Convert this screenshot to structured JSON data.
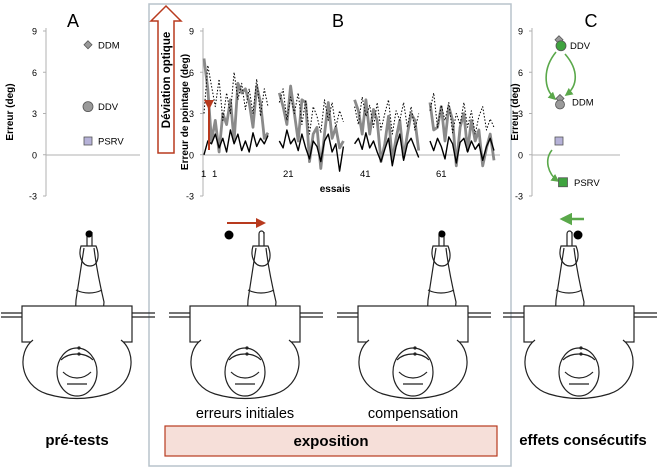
{
  "panels": {
    "a": {
      "letter": "A",
      "caption": "pré-tests"
    },
    "b": {
      "letter": "B",
      "caption": "exposition",
      "sub_left": "erreurs initiales",
      "sub_right": "compensation"
    },
    "c": {
      "letter": "C",
      "caption": "effets consécutifs"
    }
  },
  "optical_deviation_label": "Déviation optique",
  "colors": {
    "arrow_red": "#b83a1e",
    "arrow_green": "#5aa84a",
    "ddv_green": "#3fa33f",
    "panel_border": "#b8c3cc"
  },
  "chart_data": [
    {
      "type": "scatter",
      "ylabel": "Erreur (deg)",
      "ylim": [
        -3,
        9
      ],
      "yticks": [
        "9",
        "6",
        "3",
        "0",
        "-3"
      ],
      "points": [
        {
          "name": "DDM",
          "y": 8,
          "marker": "diamond"
        },
        {
          "name": "DDV",
          "y": 3.5,
          "marker": "circle"
        },
        {
          "name": "PSRV",
          "y": 1,
          "marker": "square"
        }
      ]
    },
    {
      "type": "line",
      "ylabel": "Erreur de pointage (deg)",
      "xlabel": "essais",
      "ylim": [
        -3,
        9
      ],
      "yticks": [
        "9",
        "6",
        "3",
        "0",
        "-3"
      ],
      "xticks": [
        "1",
        "1",
        "21",
        "41",
        "61"
      ],
      "series": [
        {
          "style": "gray-thick",
          "color": "#8a8a8a",
          "segments": [
            [
              [
                1,
                7
              ],
              [
                2,
                4.8
              ],
              [
                3,
                1
              ],
              [
                4,
                2.5
              ],
              [
                5,
                0.2
              ],
              [
                6,
                3
              ],
              [
                7,
                2.2
              ],
              [
                8,
                4
              ],
              [
                9,
                1
              ],
              [
                10,
                5.2
              ],
              [
                11,
                4.5
              ],
              [
                12,
                4.8
              ],
              [
                13,
                3.8
              ],
              [
                14,
                2
              ],
              [
                15,
                5
              ],
              [
                16,
                3.8
              ],
              [
                17,
                1.2
              ],
              [
                18,
                1.6
              ]
            ],
            [
              [
                21,
                4.5
              ],
              [
                22,
                3.5
              ],
              [
                23,
                2.2
              ],
              [
                24,
                5
              ],
              [
                25,
                3
              ],
              [
                26,
                1
              ],
              [
                27,
                4
              ],
              [
                28,
                3.8
              ],
              [
                29,
                -0.5
              ],
              [
                30,
                1.5
              ],
              [
                31,
                2
              ],
              [
                32,
                -1
              ],
              [
                33,
                1.5
              ],
              [
                34,
                3.8
              ],
              [
                35,
                1.2
              ],
              [
                36,
                2
              ],
              [
                37,
                0.5
              ],
              [
                38,
                1
              ]
            ],
            [
              [
                41,
                4
              ],
              [
                42,
                3.2
              ],
              [
                43,
                1.5
              ],
              [
                44,
                4
              ],
              [
                45,
                1.5
              ],
              [
                46,
                3.3
              ],
              [
                47,
                2.5
              ],
              [
                48,
                -0.5
              ],
              [
                49,
                0.8
              ],
              [
                50,
                2.8
              ],
              [
                51,
                -0.4
              ],
              [
                52,
                1.2
              ],
              [
                53,
                2.5
              ],
              [
                54,
                -0.2
              ],
              [
                55,
                1.5
              ],
              [
                56,
                3
              ],
              [
                57,
                2.5
              ],
              [
                58,
                0.3
              ]
            ],
            [
              [
                61,
                3.8
              ],
              [
                62,
                1.8
              ],
              [
                63,
                2
              ],
              [
                64,
                3.5
              ],
              [
                65,
                1
              ],
              [
                66,
                3.5
              ],
              [
                67,
                2.5
              ],
              [
                68,
                -0.8
              ],
              [
                69,
                2
              ],
              [
                70,
                3
              ],
              [
                71,
                0.3
              ],
              [
                72,
                2.5
              ],
              [
                73,
                1
              ],
              [
                74,
                1.8
              ],
              [
                75,
                -0.8
              ],
              [
                76,
                0.5
              ],
              [
                77,
                1.5
              ],
              [
                78,
                -0.4
              ]
            ]
          ]
        },
        {
          "style": "black",
          "color": "#000000",
          "segments": [
            [
              [
                1,
                0
              ],
              [
                2,
                1
              ],
              [
                3,
                0.8
              ],
              [
                4,
                1.5
              ],
              [
                5,
                0.5
              ],
              [
                6,
                1.2
              ],
              [
                7,
                0.2
              ],
              [
                8,
                1.8
              ],
              [
                9,
                0.8
              ],
              [
                10,
                1.5
              ],
              [
                11,
                0.3
              ],
              [
                12,
                1
              ],
              [
                13,
                0.2
              ],
              [
                14,
                1.6
              ],
              [
                15,
                0.6
              ],
              [
                16,
                1.2
              ],
              [
                17,
                0.8
              ],
              [
                18,
                1.4
              ]
            ],
            [
              [
                21,
                1
              ],
              [
                22,
                0.5
              ],
              [
                23,
                1.8
              ],
              [
                24,
                0.8
              ],
              [
                25,
                1.2
              ],
              [
                26,
                0.3
              ],
              [
                27,
                1.5
              ],
              [
                28,
                0.5
              ],
              [
                29,
                -0.3
              ],
              [
                30,
                1
              ],
              [
                31,
                0.6
              ],
              [
                32,
                -0.5
              ],
              [
                33,
                1
              ],
              [
                34,
                1.5
              ],
              [
                35,
                0.2
              ],
              [
                36,
                0.8
              ],
              [
                37,
                -1.2
              ],
              [
                38,
                0.6
              ]
            ],
            [
              [
                41,
                0.8
              ],
              [
                42,
                1.2
              ],
              [
                43,
                0.4
              ],
              [
                44,
                1.6
              ],
              [
                45,
                0.5
              ],
              [
                46,
                1
              ],
              [
                47,
                0.2
              ],
              [
                48,
                -0.5
              ],
              [
                49,
                0.4
              ],
              [
                50,
                1.2
              ],
              [
                51,
                -0.8
              ],
              [
                52,
                0.6
              ],
              [
                53,
                1.5
              ],
              [
                54,
                -0.4
              ],
              [
                55,
                0.8
              ],
              [
                56,
                1.2
              ],
              [
                57,
                0.5
              ],
              [
                58,
                -0.2
              ]
            ],
            [
              [
                61,
                1
              ],
              [
                62,
                0.3
              ],
              [
                63,
                1.2
              ],
              [
                64,
                0.6
              ],
              [
                65,
                -0.3
              ],
              [
                66,
                1.3
              ],
              [
                67,
                0.8
              ],
              [
                68,
                -0.6
              ],
              [
                69,
                0.9
              ],
              [
                70,
                1.2
              ],
              [
                71,
                0.2
              ],
              [
                72,
                1
              ],
              [
                73,
                0.4
              ],
              [
                74,
                0.8
              ],
              [
                75,
                -0.4
              ],
              [
                76,
                0.6
              ],
              [
                77,
                1.2
              ],
              [
                78,
                0.3
              ]
            ]
          ]
        },
        {
          "style": "dotted",
          "color": "#000000",
          "segments": [
            [
              [
                1,
                3
              ],
              [
                2,
                6.5
              ],
              [
                3,
                5
              ],
              [
                4,
                3.5
              ],
              [
                5,
                5.5
              ],
              [
                6,
                2.5
              ],
              [
                7,
                4.5
              ],
              [
                8,
                3
              ],
              [
                9,
                6
              ],
              [
                10,
                4
              ],
              [
                11,
                5.2
              ],
              [
                12,
                3.3
              ],
              [
                13,
                4.8
              ],
              [
                14,
                3
              ],
              [
                15,
                5.5
              ],
              [
                16,
                2.8
              ],
              [
                17,
                4.8
              ],
              [
                18,
                3.5
              ]
            ],
            [
              [
                21,
                3.8
              ],
              [
                22,
                4.8
              ],
              [
                23,
                2.5
              ],
              [
                24,
                4.2
              ],
              [
                25,
                3
              ],
              [
                26,
                4.5
              ],
              [
                27,
                2.2
              ],
              [
                28,
                4
              ],
              [
                29,
                1.5
              ],
              [
                30,
                3.5
              ],
              [
                31,
                2.8
              ],
              [
                32,
                1.6
              ],
              [
                33,
                4
              ],
              [
                34,
                2.5
              ],
              [
                35,
                3.8
              ],
              [
                36,
                2
              ],
              [
                37,
                3.2
              ],
              [
                38,
                2.4
              ]
            ],
            [
              [
                41,
                3.5
              ],
              [
                42,
                2.2
              ],
              [
                43,
                4.2
              ],
              [
                44,
                2.8
              ],
              [
                45,
                3.6
              ],
              [
                46,
                2
              ],
              [
                47,
                3.8
              ],
              [
                48,
                1.8
              ],
              [
                49,
                3
              ],
              [
                50,
                4
              ],
              [
                51,
                1.5
              ],
              [
                52,
                3.2
              ],
              [
                53,
                2.5
              ],
              [
                54,
                3.8
              ],
              [
                55,
                2
              ],
              [
                56,
                3.5
              ],
              [
                57,
                1.8
              ],
              [
                58,
                3
              ]
            ],
            [
              [
                61,
                3.2
              ],
              [
                62,
                4.5
              ],
              [
                63,
                2
              ],
              [
                64,
                3.6
              ],
              [
                65,
                2.5
              ],
              [
                66,
                3.8
              ],
              [
                67,
                1.6
              ],
              [
                68,
                3
              ],
              [
                69,
                2.2
              ],
              [
                70,
                3.8
              ],
              [
                71,
                2
              ],
              [
                72,
                3.2
              ],
              [
                73,
                1.5
              ],
              [
                74,
                2.8
              ],
              [
                75,
                3.5
              ],
              [
                76,
                1.8
              ],
              [
                77,
                2.6
              ],
              [
                78,
                2
              ]
            ]
          ]
        }
      ]
    },
    {
      "type": "scatter",
      "ylabel": "Erreur (deg)",
      "ylim": [
        -3,
        9
      ],
      "yticks": [
        "9",
        "6",
        "3",
        "0",
        "-3"
      ],
      "points": [
        {
          "name": "DDV",
          "y": 8,
          "marker": "diamond+circle",
          "label_offset": 0
        },
        {
          "name": "DDM",
          "y": 3.8,
          "marker": "diamond+circle",
          "label_offset": 0
        },
        {
          "name": "PSRV",
          "y": 1,
          "marker": "square-to-green",
          "moved_y": -2
        }
      ]
    }
  ]
}
